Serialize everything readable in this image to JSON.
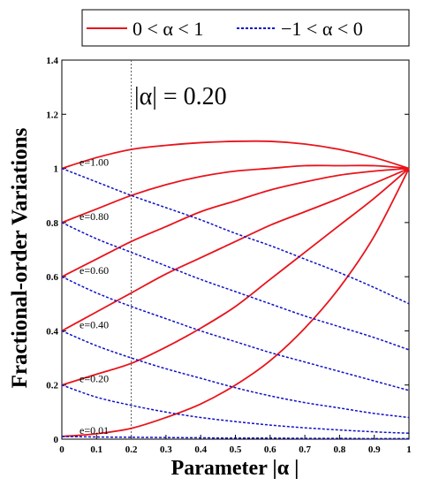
{
  "chart_data": {
    "type": "line",
    "xlabel": "Parameter  |α |",
    "ylabel": "Fractional-order Variations",
    "xlim": [
      0,
      1
    ],
    "ylim": [
      0,
      1.4
    ],
    "x_ticks": [
      "0",
      "0.1",
      "0.2",
      "0.3",
      "0.4",
      "0.5",
      "0.6",
      "0.7",
      "0.8",
      "0.9",
      "1"
    ],
    "y_ticks": [
      "0",
      "0.2",
      "0.4",
      "0.6",
      "0.8",
      "1",
      "1.2",
      "1.4"
    ],
    "annotation": "|α| = 0.20",
    "reference_x": 0.2,
    "legend": {
      "position": "top",
      "entries": [
        "0 < α < 1",
        "−1 < α < 0"
      ]
    },
    "colors": {
      "positive": "#e8141c",
      "negative": "#1010c8"
    },
    "curve_labels": [
      "e=1.00",
      "e=0.80",
      "e=0.60",
      "e=0.40",
      "e=0.20",
      "e=0.01"
    ],
    "x": [
      0,
      0.1,
      0.2,
      0.3,
      0.4,
      0.5,
      0.6,
      0.7,
      0.8,
      0.9,
      1
    ],
    "series": [
      {
        "name": "0 < α < 1",
        "e": 1.0,
        "values": [
          1.0,
          1.04,
          1.07,
          1.085,
          1.095,
          1.1,
          1.1,
          1.09,
          1.07,
          1.04,
          1.0
        ]
      },
      {
        "name": "0 < α < 1",
        "e": 0.8,
        "values": [
          0.8,
          0.85,
          0.9,
          0.94,
          0.97,
          0.99,
          1.0,
          1.01,
          1.01,
          1.01,
          1.0
        ]
      },
      {
        "name": "0 < α < 1",
        "e": 0.6,
        "values": [
          0.6,
          0.665,
          0.73,
          0.785,
          0.84,
          0.88,
          0.92,
          0.95,
          0.975,
          0.99,
          1.0
        ]
      },
      {
        "name": "0 < α < 1",
        "e": 0.4,
        "values": [
          0.4,
          0.47,
          0.54,
          0.61,
          0.67,
          0.73,
          0.79,
          0.84,
          0.89,
          0.945,
          1.0
        ]
      },
      {
        "name": "0 < α < 1",
        "e": 0.2,
        "values": [
          0.2,
          0.24,
          0.28,
          0.34,
          0.41,
          0.49,
          0.59,
          0.69,
          0.79,
          0.89,
          1.0
        ]
      },
      {
        "name": "0 < α < 1",
        "e": 0.01,
        "values": [
          0.01,
          0.02,
          0.04,
          0.08,
          0.13,
          0.2,
          0.29,
          0.41,
          0.56,
          0.75,
          1.0
        ]
      },
      {
        "name": "−1 < α < 0",
        "e": 1.0,
        "values": [
          1.0,
          0.95,
          0.9,
          0.855,
          0.81,
          0.76,
          0.715,
          0.665,
          0.615,
          0.56,
          0.5
        ]
      },
      {
        "name": "−1 < α < 0",
        "e": 0.8,
        "values": [
          0.8,
          0.74,
          0.69,
          0.64,
          0.59,
          0.545,
          0.5,
          0.455,
          0.415,
          0.375,
          0.33
        ]
      },
      {
        "name": "−1 < α < 0",
        "e": 0.6,
        "values": [
          0.6,
          0.54,
          0.49,
          0.445,
          0.4,
          0.36,
          0.32,
          0.285,
          0.25,
          0.215,
          0.18
        ]
      },
      {
        "name": "−1 < α < 0",
        "e": 0.4,
        "values": [
          0.4,
          0.345,
          0.3,
          0.26,
          0.225,
          0.19,
          0.16,
          0.135,
          0.115,
          0.095,
          0.08
        ]
      },
      {
        "name": "−1 < α < 0",
        "e": 0.2,
        "values": [
          0.2,
          0.155,
          0.125,
          0.1,
          0.08,
          0.065,
          0.052,
          0.042,
          0.034,
          0.027,
          0.022
        ]
      },
      {
        "name": "−1 < α < 0",
        "e": 0.01,
        "values": [
          0.01,
          0.008,
          0.007,
          0.006,
          0.005,
          0.004,
          0.004,
          0.003,
          0.003,
          0.002,
          0.002
        ]
      }
    ]
  }
}
